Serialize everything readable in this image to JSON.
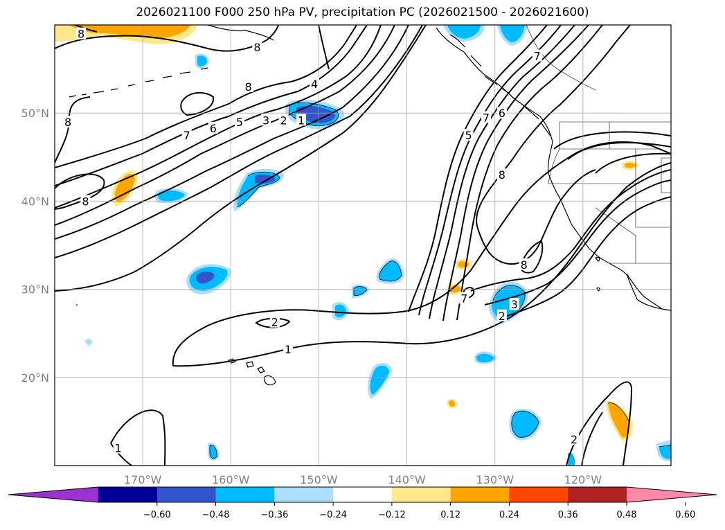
{
  "title": "2026021100 F000 250 hPa PV, precipitation PC (2026021500 - 2026021600)",
  "map": {
    "lon_range": [
      -180,
      -110
    ],
    "lat_range": [
      10,
      60
    ],
    "lat_labels": [
      {
        "value": 50,
        "text": "50°N"
      },
      {
        "value": 40,
        "text": "40°N"
      },
      {
        "value": 30,
        "text": "30°N"
      },
      {
        "value": 20,
        "text": "20°N"
      }
    ],
    "lon_labels": [
      {
        "value": -170,
        "text": "170°W"
      },
      {
        "value": -160,
        "text": "160°W"
      },
      {
        "value": -150,
        "text": "150°W"
      },
      {
        "value": -140,
        "text": "140°W"
      },
      {
        "value": -130,
        "text": "130°W"
      },
      {
        "value": -120,
        "text": "120°W"
      }
    ],
    "grid": true,
    "land_color": "#ffffff",
    "coast_color": "#000000"
  },
  "pv_contour_labels": [
    {
      "text": "8",
      "lon": -177.0,
      "lat": 59.0
    },
    {
      "text": "8",
      "lon": -176.5,
      "lat": 40.0
    },
    {
      "text": "8",
      "lon": -178.5,
      "lat": 49.0
    },
    {
      "text": "8",
      "lon": -158.0,
      "lat": 53.0
    },
    {
      "text": "8",
      "lon": -157.0,
      "lat": 57.5
    },
    {
      "text": "7",
      "lon": -165.0,
      "lat": 47.5
    },
    {
      "text": "6",
      "lon": -162.0,
      "lat": 48.3
    },
    {
      "text": "5",
      "lon": -159.0,
      "lat": 49.0
    },
    {
      "text": "4",
      "lon": -150.5,
      "lat": 53.3
    },
    {
      "text": "3",
      "lon": -156.0,
      "lat": 49.2
    },
    {
      "text": "2",
      "lon": -154.0,
      "lat": 49.2
    },
    {
      "text": "1",
      "lon": -152.0,
      "lat": 49.2
    },
    {
      "text": "2",
      "lon": -155.0,
      "lat": 26.3
    },
    {
      "text": "1",
      "lon": -153.5,
      "lat": 23.2
    },
    {
      "text": "1",
      "lon": -172.8,
      "lat": 12.0
    },
    {
      "text": "2",
      "lon": -121.0,
      "lat": 13.0
    },
    {
      "text": "7",
      "lon": -133.5,
      "lat": 29.0
    },
    {
      "text": "8",
      "lon": -126.7,
      "lat": 32.8
    },
    {
      "text": "3",
      "lon": -127.8,
      "lat": 28.3
    },
    {
      "text": "2",
      "lon": -129.2,
      "lat": 27.0
    },
    {
      "text": "8",
      "lon": -129.2,
      "lat": 43.0
    },
    {
      "text": "5",
      "lon": -133.0,
      "lat": 47.5
    },
    {
      "text": "7",
      "lon": -131.0,
      "lat": 49.5
    },
    {
      "text": "6",
      "lon": -129.2,
      "lat": 50.0
    },
    {
      "text": "7",
      "lon": -125.2,
      "lat": 56.5
    }
  ],
  "colorbar": {
    "ticks": [
      "−0.60",
      "−0.48",
      "−0.36",
      "−0.24",
      "−0.12",
      "0.12",
      "0.24",
      "0.36",
      "0.48",
      "0.60"
    ],
    "colors": [
      "#9933cc",
      "#000099",
      "#3355cc",
      "#00bbff",
      "#aaddff",
      "#ffffff",
      "#ffe88c",
      "#ffa500",
      "#ff4500",
      "#b22222",
      "#ff88aa"
    ]
  }
}
